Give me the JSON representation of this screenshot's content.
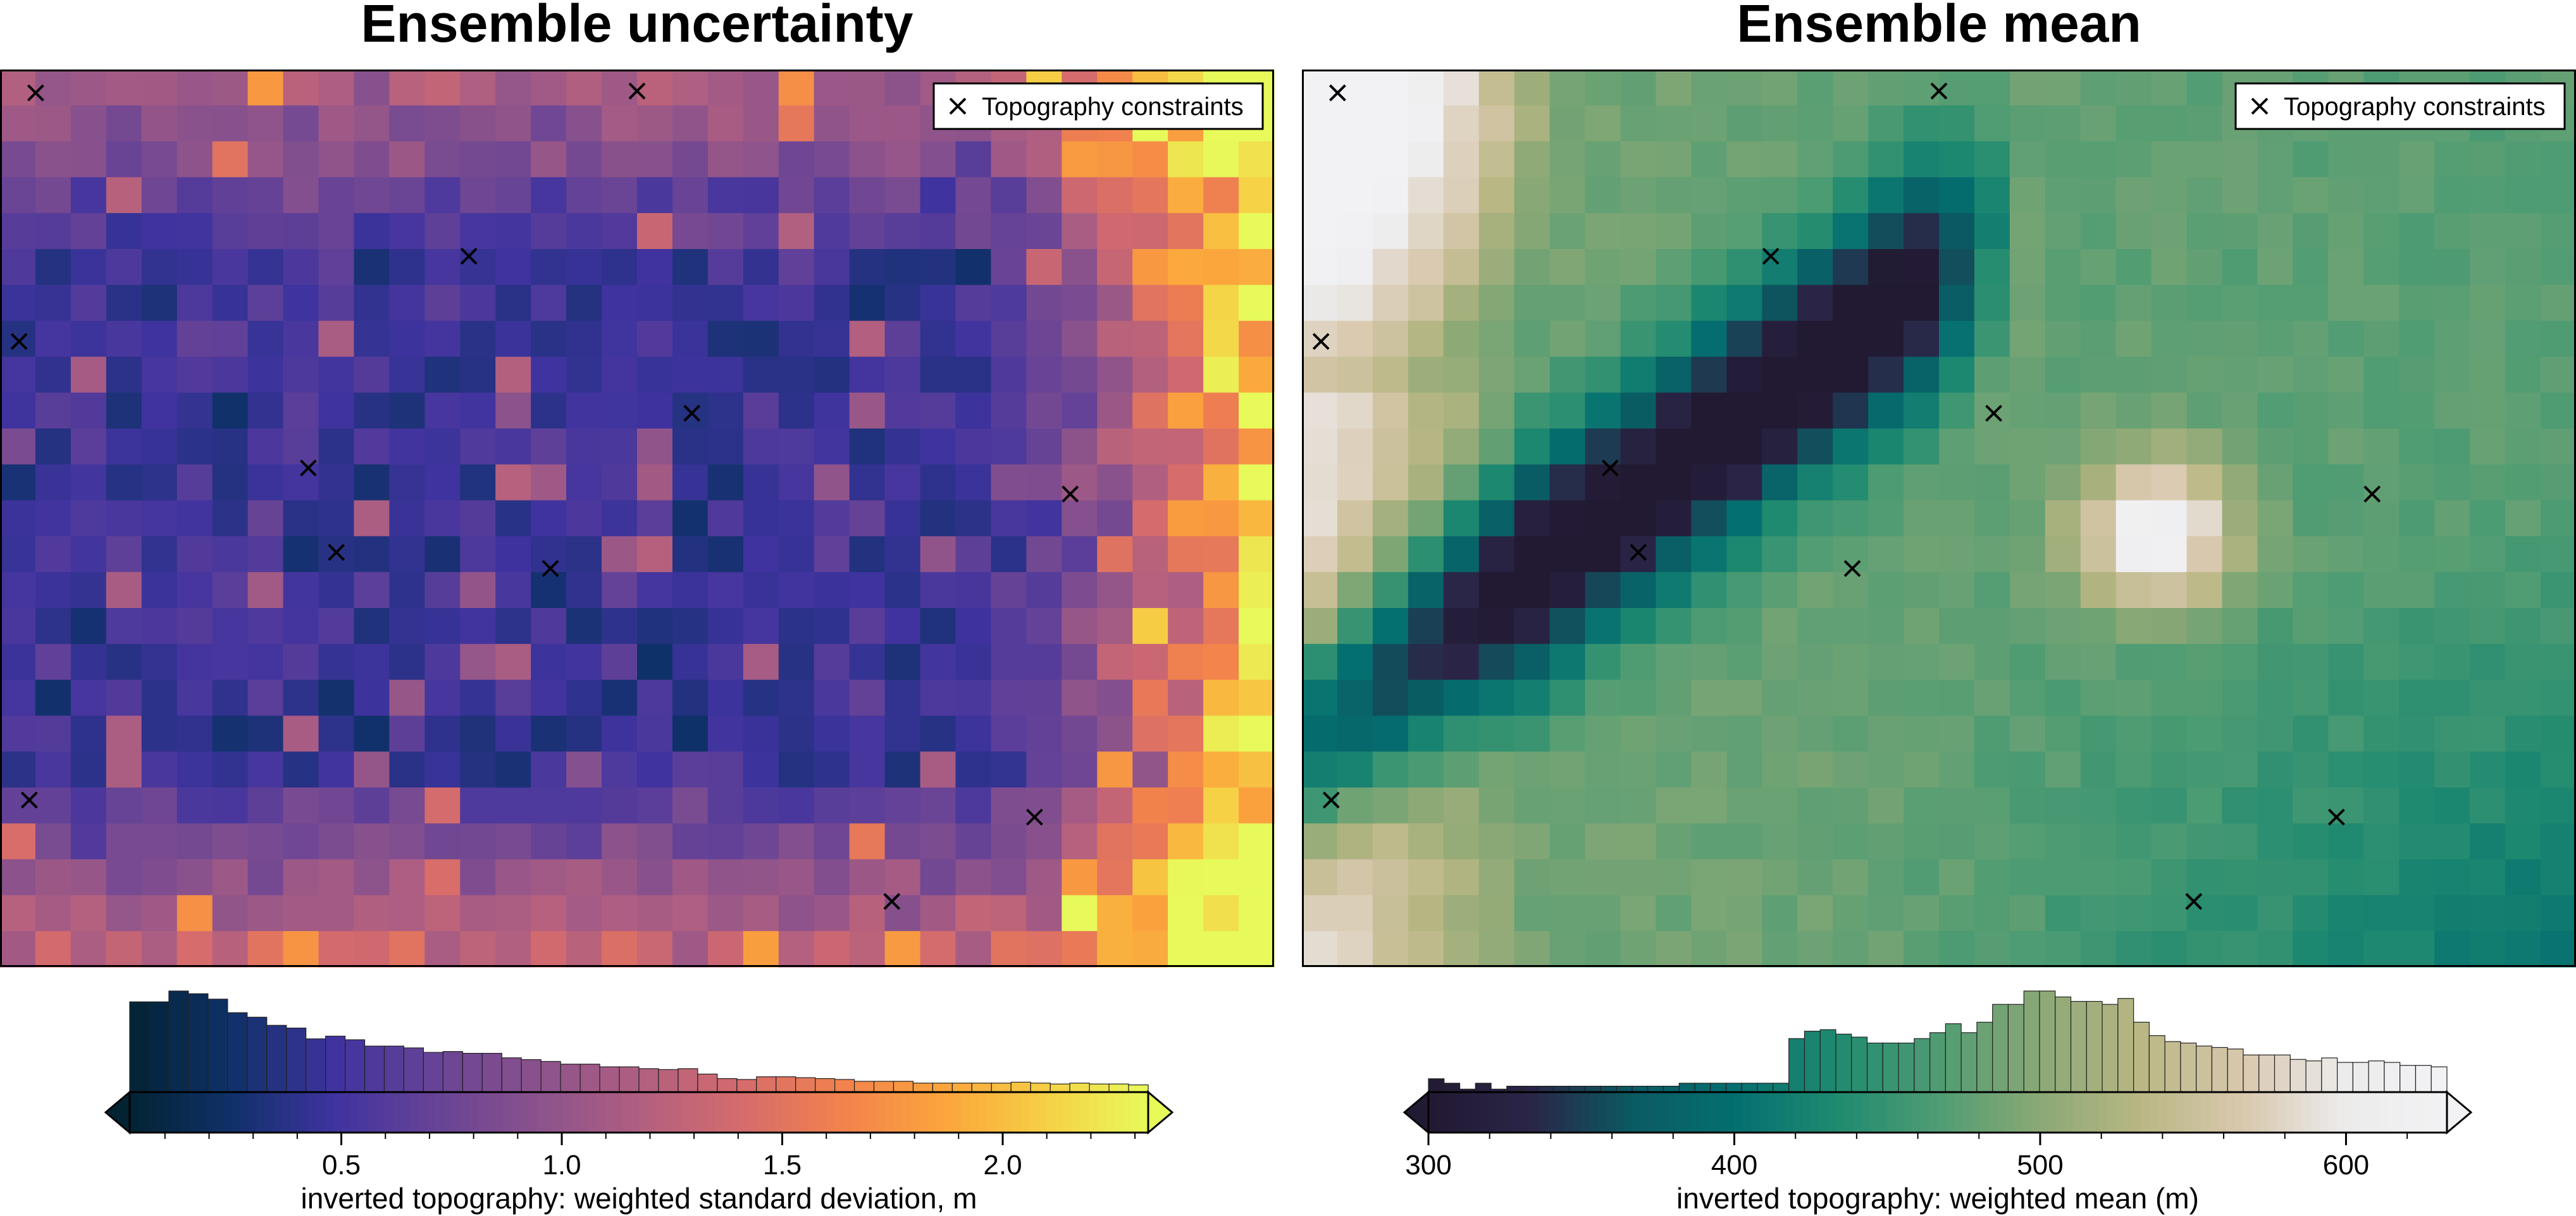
{
  "chart_data": [
    {
      "type": "heatmap",
      "title": "Ensemble uncertainty",
      "colormap": "thermal / plasma-like (dark navy → blue → purple → pink → orange → yellow)",
      "colorbar": {
        "label": "inverted topography: weighted standard deviation, m",
        "range": [
          0.02,
          2.33
        ],
        "ticks": [
          0.5,
          1.0,
          1.5,
          2.0
        ],
        "tick_labels": [
          "0.5",
          "1.0",
          "1.5",
          "2.0"
        ],
        "extend": "both",
        "histogram_counts": [
          100,
          100,
          112,
          109,
          103,
          88,
          83,
          74,
          71,
          59,
          62,
          58,
          51,
          51,
          49,
          44,
          45,
          43,
          43,
          38,
          36,
          34,
          31,
          31,
          28,
          28,
          26,
          25,
          26,
          20,
          15,
          14,
          17,
          17,
          16,
          15,
          14,
          12,
          12,
          12,
          10,
          10,
          10,
          10,
          10,
          11,
          10,
          9,
          10,
          9,
          9,
          8
        ]
      },
      "legend": {
        "position": "top-right",
        "entries": [
          "Topography constraints"
        ]
      },
      "markers": [
        {
          "x": 0.028,
          "y": 0.974
        },
        {
          "x": 0.5,
          "y": 0.976
        },
        {
          "x": 0.368,
          "y": 0.792
        },
        {
          "x": 0.015,
          "y": 0.697
        },
        {
          "x": 0.543,
          "y": 0.617
        },
        {
          "x": 0.242,
          "y": 0.556
        },
        {
          "x": 0.84,
          "y": 0.527
        },
        {
          "x": 0.264,
          "y": 0.462
        },
        {
          "x": 0.432,
          "y": 0.444
        },
        {
          "x": 0.023,
          "y": 0.186
        },
        {
          "x": 0.812,
          "y": 0.167
        },
        {
          "x": 0.7,
          "y": 0.073
        }
      ]
    },
    {
      "type": "heatmap",
      "title": "Ensemble mean",
      "colormap": "rain / earth-like (dark purple → teal → green → tan → white)",
      "colorbar": {
        "label": "inverted topography: weighted mean (m)",
        "range": [
          300,
          633
        ],
        "ticks": [
          300,
          400,
          500,
          600
        ],
        "tick_labels": [
          "300",
          "400",
          "500",
          "600"
        ],
        "extend": "both",
        "histogram_counts": [
          9,
          6,
          2,
          6,
          2,
          4,
          4,
          4,
          4,
          4,
          4,
          4,
          4,
          4,
          4,
          4,
          6,
          6,
          6,
          6,
          6,
          6,
          6,
          36,
          41,
          42,
          39,
          37,
          33,
          33,
          33,
          36,
          40,
          46,
          40,
          47,
          59,
          59,
          68,
          68,
          64,
          61,
          61,
          59,
          63,
          47,
          38,
          34,
          33,
          31,
          30,
          29,
          25,
          25,
          25,
          22,
          21,
          23,
          20,
          20,
          21,
          20,
          18,
          18,
          17
        ]
      },
      "legend": {
        "position": "top-right",
        "entries": [
          "Topography constraints"
        ]
      },
      "markers": [
        {
          "x": 0.028,
          "y": 0.974
        },
        {
          "x": 0.5,
          "y": 0.976
        },
        {
          "x": 0.368,
          "y": 0.792
        },
        {
          "x": 0.015,
          "y": 0.697
        },
        {
          "x": 0.543,
          "y": 0.617
        },
        {
          "x": 0.242,
          "y": 0.556
        },
        {
          "x": 0.84,
          "y": 0.527
        },
        {
          "x": 0.264,
          "y": 0.462
        },
        {
          "x": 0.432,
          "y": 0.444
        },
        {
          "x": 0.023,
          "y": 0.186
        },
        {
          "x": 0.812,
          "y": 0.167
        },
        {
          "x": 0.7,
          "y": 0.073
        }
      ]
    }
  ]
}
